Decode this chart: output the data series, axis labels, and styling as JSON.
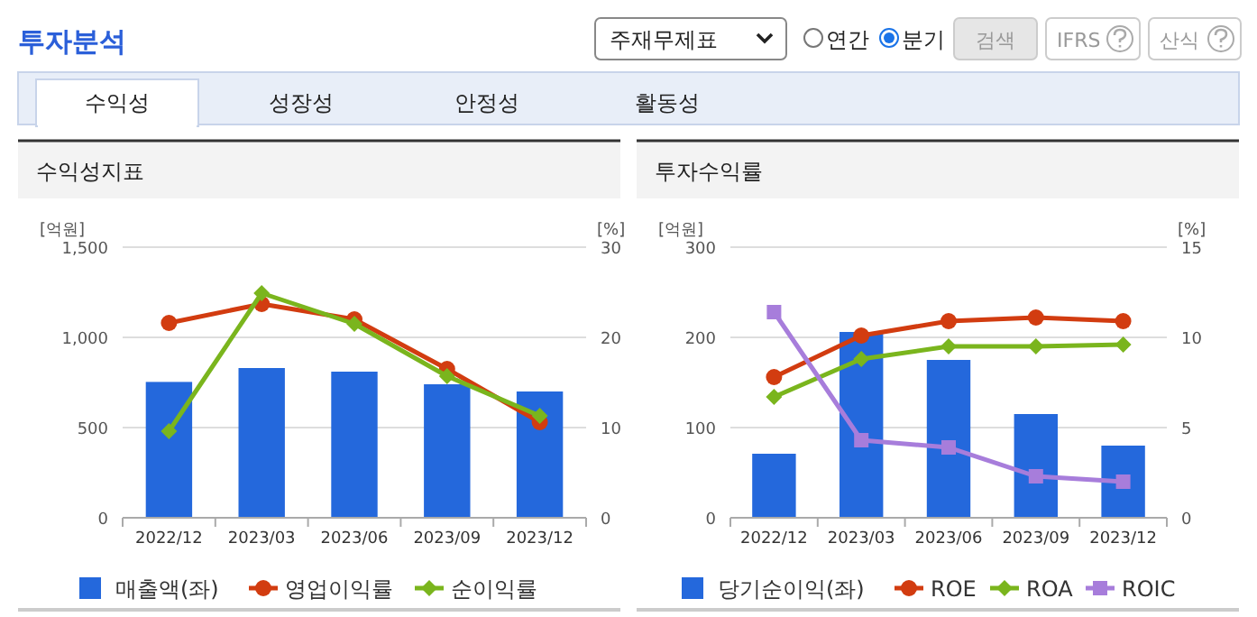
{
  "chart_data": [
    {
      "type": "other",
      "title": "투자분석",
      "annotations": [
        "주재무제표",
        "연간",
        "분기",
        "검색",
        "IFRS",
        "산식",
        "수익성",
        "성장성",
        "안정성",
        "활동성"
      ]
    },
    {
      "type": "bar",
      "title": "수익성지표",
      "ylabel": "[억원]",
      "y2label": "[%]",
      "categories": [
        "2022/12",
        "2023/03",
        "2023/06",
        "2023/09",
        "2023/12"
      ],
      "ylim": [
        0,
        1500
      ],
      "yticks": [
        0,
        500,
        {
          "value": 1000,
          "label": "1,000"
        },
        {
          "value": 1500,
          "label": "1,500"
        }
      ],
      "y2lim": [
        0,
        30
      ],
      "y2ticks": [
        0,
        10,
        20,
        30
      ],
      "grid": "y",
      "legend": "bottom",
      "series": [
        {
          "name": "매출액(좌)",
          "type": "bar",
          "color": "#2468dc",
          "values": [
            753,
            830,
            810,
            740,
            700
          ]
        },
        {
          "name": "영업이익률",
          "type": "line",
          "axis": "y2",
          "marker": "circle",
          "color": "#d23c10",
          "values": [
            21.6,
            23.7,
            22.0,
            16.5,
            10.6
          ]
        },
        {
          "name": "순이익률",
          "type": "line",
          "axis": "y2",
          "marker": "diamond",
          "color": "#7ab51d",
          "values": [
            9.6,
            24.9,
            21.5,
            15.7,
            11.3
          ]
        }
      ]
    },
    {
      "type": "bar",
      "title": "투자수익률",
      "ylabel": "[억원]",
      "y2label": "[%]",
      "categories": [
        "2022/12",
        "2023/03",
        "2023/06",
        "2023/09",
        "2023/12"
      ],
      "ylim": [
        0,
        300
      ],
      "yticks": [
        0,
        100,
        200,
        300
      ],
      "y2lim": [
        0,
        15
      ],
      "y2ticks": [
        0,
        5,
        10,
        15
      ],
      "grid": "y",
      "legend": "bottom",
      "series": [
        {
          "name": "당기순이익(좌)",
          "type": "bar",
          "color": "#2468dc",
          "values": [
            71,
            206,
            175,
            115,
            80
          ]
        },
        {
          "name": "ROE",
          "type": "line",
          "axis": "y2",
          "marker": "circle",
          "color": "#d23c10",
          "values": [
            7.8,
            10.1,
            10.9,
            11.1,
            10.9
          ]
        },
        {
          "name": "ROA",
          "type": "line",
          "axis": "y2",
          "marker": "diamond",
          "color": "#7ab51d",
          "values": [
            6.7,
            8.8,
            9.5,
            9.5,
            9.6
          ]
        },
        {
          "name": "ROIC",
          "type": "line",
          "axis": "y2",
          "marker": "square",
          "color": "#a77ddb",
          "values": [
            11.4,
            4.3,
            3.9,
            2.3,
            2.0
          ]
        }
      ]
    }
  ]
}
